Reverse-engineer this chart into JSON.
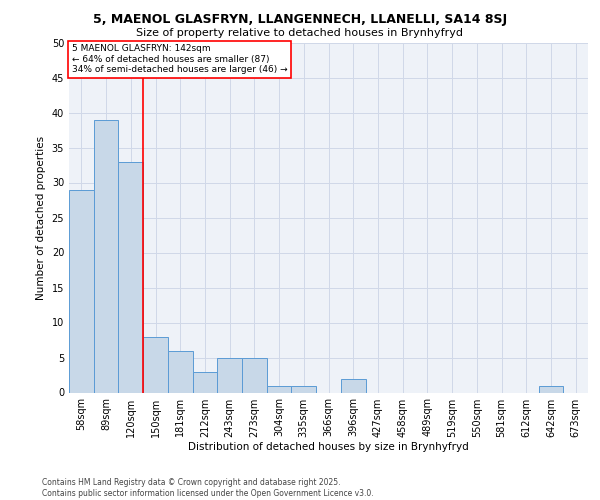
{
  "title_line1": "5, MAENOL GLASFRYN, LLANGENNECH, LLANELLI, SA14 8SJ",
  "title_line2": "Size of property relative to detached houses in Brynhyfryd",
  "xlabel": "Distribution of detached houses by size in Brynhyfryd",
  "ylabel": "Number of detached properties",
  "categories": [
    "58sqm",
    "89sqm",
    "120sqm",
    "150sqm",
    "181sqm",
    "212sqm",
    "243sqm",
    "273sqm",
    "304sqm",
    "335sqm",
    "366sqm",
    "396sqm",
    "427sqm",
    "458sqm",
    "489sqm",
    "519sqm",
    "550sqm",
    "581sqm",
    "612sqm",
    "642sqm",
    "673sqm"
  ],
  "values": [
    29,
    39,
    33,
    8,
    6,
    3,
    5,
    5,
    1,
    1,
    0,
    2,
    0,
    0,
    0,
    0,
    0,
    0,
    0,
    1,
    0
  ],
  "bar_color": "#c8d8e8",
  "bar_edge_color": "#5b9bd5",
  "grid_color": "#d0d8e8",
  "background_color": "#eef2f8",
  "red_line_x": 2.5,
  "annotation_line1": "5 MAENOL GLASFRYN: 142sqm",
  "annotation_line2": "← 64% of detached houses are smaller (87)",
  "annotation_line3": "34% of semi-detached houses are larger (46) →",
  "footer_text": "Contains HM Land Registry data © Crown copyright and database right 2025.\nContains public sector information licensed under the Open Government Licence v3.0.",
  "ylim": [
    0,
    50
  ],
  "yticks": [
    0,
    5,
    10,
    15,
    20,
    25,
    30,
    35,
    40,
    45,
    50
  ],
  "title1_fontsize": 9,
  "title2_fontsize": 8,
  "axis_label_fontsize": 7.5,
  "tick_fontsize": 7,
  "annotation_fontsize": 6.5,
  "footer_fontsize": 5.5
}
